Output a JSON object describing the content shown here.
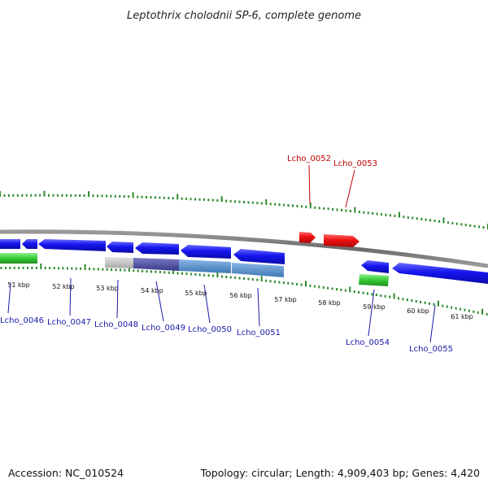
{
  "title": "Leptothrix cholodnii SP-6, complete genome",
  "footer": {
    "accession": "Accession: NC_010524",
    "summary": "Topology: circular; Length: 4,909,403 bp; Genes: 4,420"
  },
  "colors": {
    "backbone": "#7a7a7a",
    "gene_forward": "#ee1111",
    "gene_reverse": "#1010e6",
    "rna": "#2ec42e",
    "tick": "#2a8a2a",
    "label_forward": "#c00000",
    "label_reverse": "#1a1aa8"
  },
  "scale": {
    "unit": "kbp",
    "labels": [
      "51 kbp",
      "52 kbp",
      "53 kbp",
      "54 kbp",
      "55 kbp",
      "56 kbp",
      "57 kbp",
      "58 kbp",
      "59 kbp",
      "60 kbp",
      "61 kbp"
    ]
  },
  "gene_labels": {
    "forward": [
      "Lcho_0052",
      "Lcho_0053"
    ],
    "reverse": [
      "Lcho_0046",
      "Lcho_0047",
      "Lcho_0048",
      "Lcho_0049",
      "Lcho_0050",
      "Lcho_0051",
      "Lcho_0054",
      "Lcho_0055"
    ]
  }
}
